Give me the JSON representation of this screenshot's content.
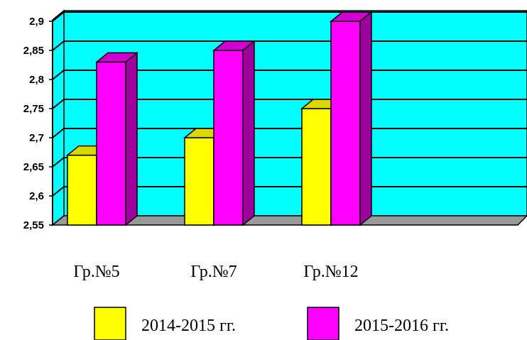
{
  "chart_data": {
    "type": "bar",
    "categories": [
      "Гр.№5",
      "Гр.№7",
      "Гр.№12"
    ],
    "series": [
      {
        "name": "2014-2015 гг.",
        "color": "#ffff00",
        "values": [
          2.67,
          2.7,
          2.75
        ]
      },
      {
        "name": "2015-2016 гг.",
        "color": "#ff00ff",
        "values": [
          2.83,
          2.85,
          2.9
        ]
      }
    ],
    "yticks": [
      "2,55",
      "2,6",
      "2,65",
      "2,7",
      "2,75",
      "2,8",
      "2,85",
      "2,9"
    ],
    "ylim": [
      2.55,
      2.9
    ],
    "grid": true,
    "legend_position": "bottom",
    "wall_color": "#00ffff",
    "floor_color": "#999999",
    "title": "",
    "xlabel": "",
    "ylabel": ""
  }
}
